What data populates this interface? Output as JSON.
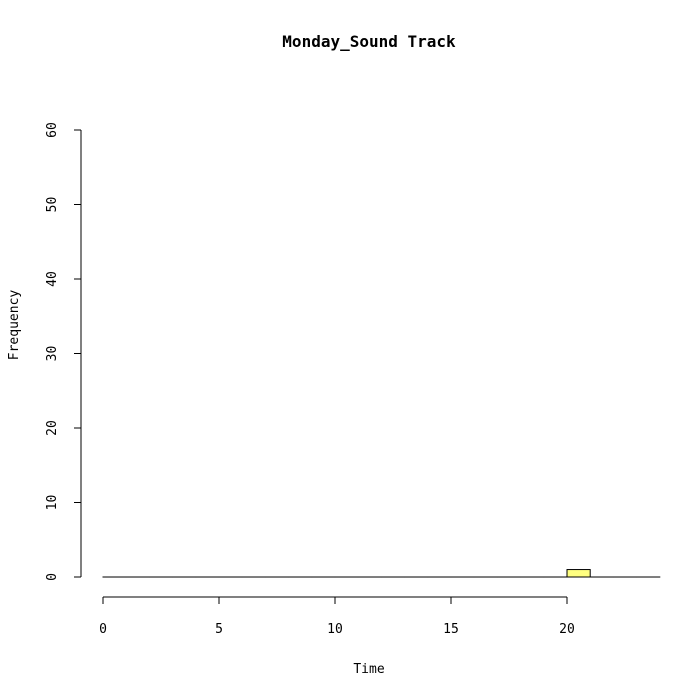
{
  "chart_data": {
    "type": "bar",
    "title": "Monday_Sound Track",
    "xlabel": "Time",
    "ylabel": "Frequency",
    "xlim": [
      0,
      24
    ],
    "ylim": [
      0,
      60
    ],
    "x_ticks": [
      0,
      5,
      10,
      15,
      20
    ],
    "y_ticks": [
      0,
      10,
      20,
      30,
      40,
      50,
      60
    ],
    "bin_width": 1,
    "bins": [
      0,
      1,
      2,
      3,
      4,
      5,
      6,
      7,
      8,
      9,
      10,
      11,
      12,
      13,
      14,
      15,
      16,
      17,
      18,
      19,
      20,
      21,
      22,
      23
    ],
    "values": [
      0,
      0,
      0,
      0,
      0,
      0,
      0,
      0,
      0,
      0,
      0,
      0,
      0,
      0,
      0,
      0,
      0,
      0,
      0,
      0,
      1,
      0,
      0,
      0
    ],
    "bar_color": "#ffff80",
    "grid": false
  }
}
